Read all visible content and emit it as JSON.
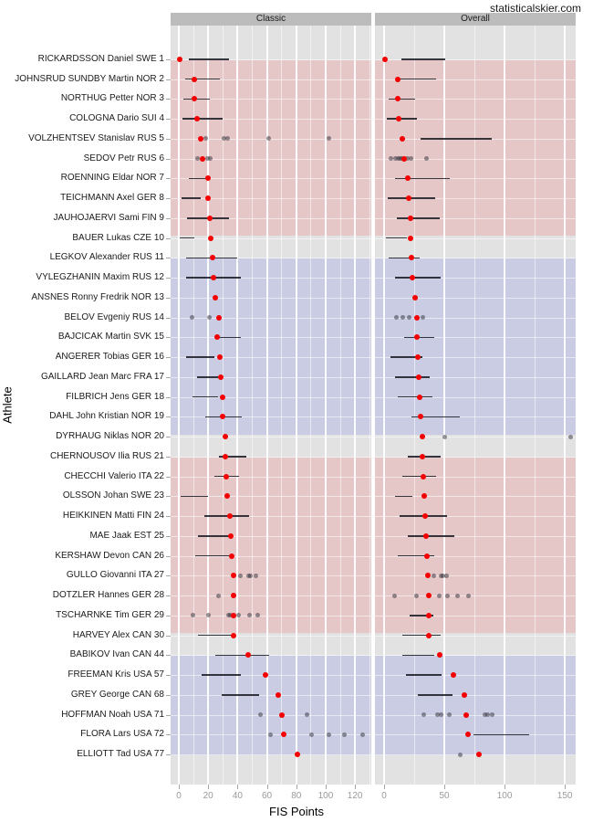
{
  "chart_data": {
    "type": "scatter",
    "title": "statisticalskier.com",
    "xlabel": "FIS Points",
    "ylabel": "Athlete",
    "panels": [
      {
        "label": "Classic",
        "domain": [
          -5.6,
          131.1
        ],
        "ticks": [
          0,
          20,
          40,
          60,
          80,
          100,
          120
        ],
        "minor_step": 10,
        "minor_max": 130
      },
      {
        "label": "Overall",
        "domain": [
          -7.6,
          159.0
        ],
        "ticks": [
          0,
          50,
          100,
          150
        ],
        "minor_step": 25,
        "minor_max": 150
      }
    ],
    "colors": {
      "panel_bg": "#e2e2e2",
      "strip_bg": "#bcbcbc",
      "band_pink": "#e5c7c7",
      "band_blue": "#c9cce3",
      "median_dot": "#f40000",
      "outlier_dot": "#3f3f4a",
      "range_line": "#15151f",
      "grid": "#ffffff"
    },
    "groups": [
      {
        "first": 0,
        "last": 9,
        "color": "band_pink"
      },
      {
        "first": 10,
        "last": 19,
        "color": "band_blue"
      },
      {
        "first": 20,
        "last": 29,
        "color": "band_pink"
      },
      {
        "first": 30,
        "last": 35,
        "color": "band_blue"
      }
    ],
    "athletes": [
      {
        "label": "RICKARDSSON Daniel SWE 1",
        "classic": {
          "median": 0.5,
          "range": [
            7,
            34
          ],
          "outliers": []
        },
        "overall": {
          "median": 1.0,
          "range": [
            14.5,
            51
          ],
          "outliers": []
        }
      },
      {
        "label": "JOHNSRUD SUNDBY Martin NOR 2",
        "classic": {
          "median": 10.5,
          "range": [
            4.5,
            28
          ],
          "outliers": []
        },
        "overall": {
          "median": 11.4,
          "range": [
            13,
            43.5
          ],
          "outliers": []
        }
      },
      {
        "label": "NORTHUG Petter NOR 3",
        "classic": {
          "median": 10.5,
          "range": [
            3,
            21
          ],
          "outliers": []
        },
        "overall": {
          "median": 11.4,
          "range": [
            4,
            26
          ],
          "outliers": []
        }
      },
      {
        "label": "COLOGNA Dario SUI 4",
        "classic": {
          "median": 12.4,
          "range": [
            2.5,
            30
          ],
          "outliers": []
        },
        "overall": {
          "median": 12.1,
          "range": [
            2.5,
            27.5
          ],
          "outliers": []
        }
      },
      {
        "label": "VOLZHENTSEV Stanislav RUS 5",
        "classic": {
          "median": 15.0,
          "range": null,
          "outliers": [
            18.5,
            31,
            33,
            61,
            102
          ]
        },
        "overall": {
          "median": 15.4,
          "range": [
            30.5,
            89.5
          ],
          "outliers": []
        }
      },
      {
        "label": "SEDOV Petr RUS 6",
        "classic": {
          "median": 16.0,
          "range": null,
          "outliers": [
            13,
            19.5,
            21.3
          ]
        },
        "overall": {
          "median": 17.0,
          "range": null,
          "outliers": [
            5.5,
            9.5,
            11.5,
            13,
            15,
            19.5,
            22,
            35.5
          ]
        }
      },
      {
        "label": "ROENNING Eldar NOR 7",
        "classic": {
          "median": 20.0,
          "range": [
            7,
            19
          ],
          "outliers": []
        },
        "overall": {
          "median": 19.7,
          "range": [
            9,
            54.5
          ],
          "outliers": []
        }
      },
      {
        "label": "TEICHMANN Axel GER 8",
        "classic": {
          "median": 20.0,
          "range": [
            2,
            15
          ],
          "outliers": []
        },
        "overall": {
          "median": 20.5,
          "range": [
            3,
            42.5
          ],
          "outliers": []
        }
      },
      {
        "label": "JAUHOJAERVI Sami FIN 9",
        "classic": {
          "median": 21.4,
          "range": [
            5.5,
            34
          ],
          "outliers": []
        },
        "overall": {
          "median": 22.0,
          "range": [
            10.5,
            46
          ],
          "outliers": []
        }
      },
      {
        "label": "BAUER Lukas CZE 10",
        "classic": {
          "median": 22.0,
          "range": [
            0.5,
            10.5
          ],
          "outliers": []
        },
        "overall": {
          "median": 22.0,
          "range": [
            1.5,
            19
          ],
          "outliers": []
        }
      },
      {
        "label": "LEGKOV Alexander RUS 11",
        "classic": {
          "median": 23.0,
          "range": [
            5,
            40
          ],
          "outliers": []
        },
        "overall": {
          "median": 23.0,
          "range": [
            4,
            29.5
          ],
          "outliers": []
        }
      },
      {
        "label": "VYLEGZHANIN Maxim RUS 12",
        "classic": {
          "median": 23.6,
          "range": [
            5,
            42
          ],
          "outliers": []
        },
        "overall": {
          "median": 23.5,
          "range": [
            9,
            47
          ],
          "outliers": []
        }
      },
      {
        "label": "ANSNES Ronny Fredrik NOR 13",
        "classic": {
          "median": 24.8,
          "range": null,
          "outliers": []
        },
        "overall": {
          "median": 25.5,
          "range": null,
          "outliers": []
        }
      },
      {
        "label": "BELOV Evgeniy RUS 14",
        "classic": {
          "median": 27.3,
          "range": null,
          "outliers": [
            9.3,
            21
          ]
        },
        "overall": {
          "median": 27.0,
          "range": null,
          "outliers": [
            10,
            15.5,
            21,
            32
          ]
        }
      },
      {
        "label": "BAJCICAK Martin SVK 15",
        "classic": {
          "median": 26.3,
          "range": [
            24.5,
            42.5
          ],
          "outliers": []
        },
        "overall": {
          "median": 27.0,
          "range": [
            16.5,
            42
          ],
          "outliers": []
        }
      },
      {
        "label": "ANGERER Tobias GER 16",
        "classic": {
          "median": 28.0,
          "range": [
            5,
            24
          ],
          "outliers": []
        },
        "overall": {
          "median": 28.3,
          "range": [
            5,
            31.5
          ],
          "outliers": []
        }
      },
      {
        "label": "GAILLARD Jean Marc FRA 17",
        "classic": {
          "median": 28.8,
          "range": [
            12.5,
            28
          ],
          "outliers": []
        },
        "overall": {
          "median": 28.5,
          "range": [
            9,
            38
          ],
          "outliers": []
        }
      },
      {
        "label": "FILBRICH Jens GER 18",
        "classic": {
          "median": 29.8,
          "range": [
            9.5,
            26.5
          ],
          "outliers": []
        },
        "overall": {
          "median": 29.5,
          "range": [
            11.5,
            40
          ],
          "outliers": []
        }
      },
      {
        "label": "DAHL John Kristian NOR 19",
        "classic": {
          "median": 30.0,
          "range": [
            18,
            43
          ],
          "outliers": []
        },
        "overall": {
          "median": 30.0,
          "range": [
            22.5,
            62.5
          ],
          "outliers": []
        }
      },
      {
        "label": "DYRHAUG Niklas NOR 20",
        "classic": {
          "median": 31.5,
          "range": null,
          "outliers": []
        },
        "overall": {
          "median": 31.6,
          "range": null,
          "outliers": [
            50.5,
            155
          ]
        }
      },
      {
        "label": "CHERNOUSOV Ilia RUS 21",
        "classic": {
          "median": 31.7,
          "range": [
            27.5,
            46
          ],
          "outliers": []
        },
        "overall": {
          "median": 31.6,
          "range": [
            20,
            47
          ],
          "outliers": []
        }
      },
      {
        "label": "CHECCHI Valerio ITA 22",
        "classic": {
          "median": 32.5,
          "range": [
            24,
            41
          ],
          "outliers": []
        },
        "overall": {
          "median": 32.8,
          "range": [
            15,
            43
          ],
          "outliers": []
        }
      },
      {
        "label": "OLSSON Johan SWE 23",
        "classic": {
          "median": 33.1,
          "range": [
            1,
            20
          ],
          "outliers": []
        },
        "overall": {
          "median": 33.1,
          "range": [
            9,
            23.5
          ],
          "outliers": []
        }
      },
      {
        "label": "HEIKKINEN Matti FIN 24",
        "classic": {
          "median": 34.6,
          "range": [
            17.5,
            48
          ],
          "outliers": []
        },
        "overall": {
          "median": 34.1,
          "range": [
            13,
            52.5
          ],
          "outliers": []
        }
      },
      {
        "label": "MAE Jaak EST 25",
        "classic": {
          "median": 35.6,
          "range": [
            13,
            34.5
          ],
          "outliers": []
        },
        "overall": {
          "median": 34.8,
          "range": [
            20,
            58.5
          ],
          "outliers": []
        }
      },
      {
        "label": "KERSHAW Devon CAN 26",
        "classic": {
          "median": 36.0,
          "range": [
            11,
            36
          ],
          "outliers": []
        },
        "overall": {
          "median": 35.9,
          "range": [
            11.5,
            41.5
          ],
          "outliers": []
        }
      },
      {
        "label": "GULLO Giovanni ITA 27",
        "classic": {
          "median": 37.0,
          "range": null,
          "outliers": [
            42,
            47.5,
            49,
            52.5
          ]
        },
        "overall": {
          "median": 36.6,
          "range": null,
          "outliers": [
            41,
            47,
            48.5,
            51.5
          ]
        }
      },
      {
        "label": "DOTZLER Hannes GER 28",
        "classic": {
          "median": 37.0,
          "range": null,
          "outliers": [
            27
          ]
        },
        "overall": {
          "median": 37.0,
          "range": null,
          "outliers": [
            8.5,
            27,
            45.5,
            52.5,
            61,
            70
          ]
        }
      },
      {
        "label": "TSCHARNKE Tim GER 29",
        "classic": {
          "median": 37.0,
          "range": null,
          "outliers": [
            9.7,
            20,
            33.7,
            35.4,
            40.5,
            48,
            53.5
          ]
        },
        "overall": {
          "median": 37.0,
          "range": [
            21.5,
            41
          ],
          "outliers": []
        }
      },
      {
        "label": "HARVEY Alex CAN 30",
        "classic": {
          "median": 37.3,
          "range": [
            13,
            36
          ],
          "outliers": []
        },
        "overall": {
          "median": 37.1,
          "range": [
            15,
            47
          ],
          "outliers": []
        }
      },
      {
        "label": "BABIKOV Ivan CAN 44",
        "classic": {
          "median": 47.0,
          "range": [
            25,
            61.5
          ],
          "outliers": []
        },
        "overall": {
          "median": 46.2,
          "range": [
            15,
            41.5
          ],
          "outliers": []
        }
      },
      {
        "label": "FREEMAN Kris USA 57",
        "classic": {
          "median": 59.0,
          "range": [
            15.5,
            42.5
          ],
          "outliers": []
        },
        "overall": {
          "median": 57.8,
          "range": [
            18,
            48
          ],
          "outliers": []
        }
      },
      {
        "label": "GREY George CAN 68",
        "classic": {
          "median": 68.0,
          "range": [
            29.5,
            54.5
          ],
          "outliers": []
        },
        "overall": {
          "median": 66.7,
          "range": [
            28,
            57
          ],
          "outliers": []
        }
      },
      {
        "label": "HOFFMAN Noah USA 71",
        "classic": {
          "median": 70.0,
          "range": null,
          "outliers": [
            55.5,
            87.5
          ]
        },
        "overall": {
          "median": 68.2,
          "range": null,
          "outliers": [
            33,
            44.5,
            47.5,
            54,
            84,
            86,
            89.5
          ]
        }
      },
      {
        "label": "FLORA Lars USA 72",
        "classic": {
          "median": 71.4,
          "range": null,
          "outliers": [
            62.5,
            90.5,
            102,
            113,
            125
          ]
        },
        "overall": {
          "median": 69.7,
          "range": [
            74,
            120.5
          ],
          "outliers": []
        }
      },
      {
        "label": "ELLIOTT Tad USA 77",
        "classic": {
          "median": 80.5,
          "range": null,
          "outliers": []
        },
        "overall": {
          "median": 78.8,
          "range": null,
          "outliers": [
            63.5
          ]
        }
      }
    ]
  }
}
